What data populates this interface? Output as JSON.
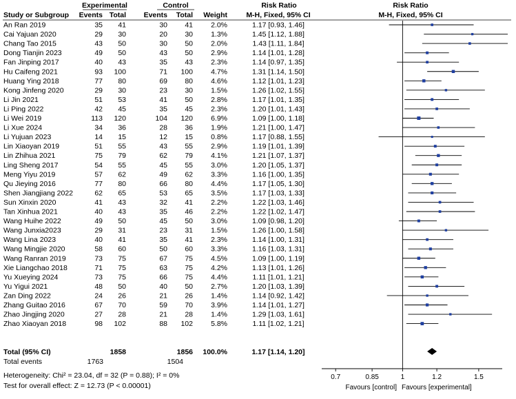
{
  "table": {
    "group_headers": {
      "experimental": "Experimental",
      "control": "Control",
      "effect_left": "Risk Ratio",
      "effect_right": "Risk Ratio"
    },
    "col_headers": {
      "study": "Study or Subgroup",
      "events_e": "Events",
      "total_e": "Total",
      "events_c": "Events",
      "total_c": "Total",
      "weight": "Weight",
      "method_left": "M-H, Fixed, 95% CI",
      "method_right": "M-H, Fixed, 95% CI"
    },
    "total_row": {
      "label": "Total (95% CI)",
      "total_e": "1858",
      "total_c": "1856",
      "weight": "100.0%",
      "ci": "1.17 [1.14, 1.20]"
    },
    "events_row": {
      "label": "Total events",
      "events_e": "1763",
      "events_c": "1504"
    },
    "heterogeneity": "Heterogeneity: Chi² = 23.04, df = 32 (P = 0.88); I² = 0%",
    "overall_effect": "Test for overall effect: Z = 12.73 (P < 0.00001)",
    "favours_left": "Favours [control]",
    "favours_right": "Favours [experimental]"
  },
  "chart_data": {
    "type": "forest",
    "x_scale": "log",
    "xlim": [
      0.65,
      1.7
    ],
    "x_ticks": [
      "0.7",
      "0.85",
      "1",
      "1.2",
      "1.5"
    ],
    "null_line": 1,
    "studies": [
      {
        "study": "An Ran 2019",
        "events_e": 35,
        "total_e": 41,
        "events_c": 30,
        "total_c": 41,
        "weight": "2.0%",
        "rr": 1.17,
        "lo": 0.93,
        "hi": 1.46,
        "ci": "1.17 [0.93, 1.46]"
      },
      {
        "study": "Cai Yajuan 2020",
        "events_e": 29,
        "total_e": 30,
        "events_c": 20,
        "total_c": 30,
        "weight": "1.3%",
        "rr": 1.45,
        "lo": 1.12,
        "hi": 1.88,
        "ci": "1.45 [1.12, 1.88]"
      },
      {
        "study": "Chang Tao 2015",
        "events_e": 43,
        "total_e": 50,
        "events_c": 30,
        "total_c": 50,
        "weight": "2.0%",
        "rr": 1.43,
        "lo": 1.11,
        "hi": 1.84,
        "ci": "1.43 [1.11, 1.84]"
      },
      {
        "study": "Dong Tianjin 2023",
        "events_e": 49,
        "total_e": 50,
        "events_c": 43,
        "total_c": 50,
        "weight": "2.9%",
        "rr": 1.14,
        "lo": 1.01,
        "hi": 1.28,
        "ci": "1.14 [1.01, 1.28]"
      },
      {
        "study": "Fan Jinping 2017",
        "events_e": 40,
        "total_e": 43,
        "events_c": 35,
        "total_c": 43,
        "weight": "2.3%",
        "rr": 1.14,
        "lo": 0.97,
        "hi": 1.35,
        "ci": "1.14 [0.97, 1.35]"
      },
      {
        "study": "Hu Caifeng 2021",
        "events_e": 93,
        "total_e": 100,
        "events_c": 71,
        "total_c": 100,
        "weight": "4.7%",
        "rr": 1.31,
        "lo": 1.14,
        "hi": 1.5,
        "ci": "1.31 [1.14, 1.50]"
      },
      {
        "study": "Huang Ying 2018",
        "events_e": 77,
        "total_e": 80,
        "events_c": 69,
        "total_c": 80,
        "weight": "4.6%",
        "rr": 1.12,
        "lo": 1.01,
        "hi": 1.23,
        "ci": "1.12 [1.01, 1.23]"
      },
      {
        "study": "Kong Jinfeng 2020",
        "events_e": 29,
        "total_e": 30,
        "events_c": 23,
        "total_c": 30,
        "weight": "1.5%",
        "rr": 1.26,
        "lo": 1.02,
        "hi": 1.55,
        "ci": "1.26 [1.02, 1.55]"
      },
      {
        "study": "Li Jin 2021",
        "events_e": 51,
        "total_e": 53,
        "events_c": 41,
        "total_c": 50,
        "weight": "2.8%",
        "rr": 1.17,
        "lo": 1.01,
        "hi": 1.35,
        "ci": "1.17 [1.01, 1.35]"
      },
      {
        "study": "Li Ping 2022",
        "events_e": 42,
        "total_e": 45,
        "events_c": 35,
        "total_c": 45,
        "weight": "2.3%",
        "rr": 1.2,
        "lo": 1.01,
        "hi": 1.43,
        "ci": "1.20 [1.01, 1.43]"
      },
      {
        "study": "Li Wei 2019",
        "events_e": 113,
        "total_e": 120,
        "events_c": 104,
        "total_c": 120,
        "weight": "6.9%",
        "rr": 1.09,
        "lo": 1.0,
        "hi": 1.18,
        "ci": "1.09 [1.00, 1.18]"
      },
      {
        "study": "Li Xue 2024",
        "events_e": 34,
        "total_e": 36,
        "events_c": 28,
        "total_c": 36,
        "weight": "1.9%",
        "rr": 1.21,
        "lo": 1.0,
        "hi": 1.47,
        "ci": "1.21 [1.00, 1.47]"
      },
      {
        "study": "Li Yujuan 2023",
        "events_e": 14,
        "total_e": 15,
        "events_c": 12,
        "total_c": 15,
        "weight": "0.8%",
        "rr": 1.17,
        "lo": 0.88,
        "hi": 1.55,
        "ci": "1.17 [0.88, 1.55]"
      },
      {
        "study": "Lin Xiaoyan 2019",
        "events_e": 51,
        "total_e": 55,
        "events_c": 43,
        "total_c": 55,
        "weight": "2.9%",
        "rr": 1.19,
        "lo": 1.01,
        "hi": 1.39,
        "ci": "1.19 [1.01, 1.39]"
      },
      {
        "study": "Lin Zhihua 2021",
        "events_e": 75,
        "total_e": 79,
        "events_c": 62,
        "total_c": 79,
        "weight": "4.1%",
        "rr": 1.21,
        "lo": 1.07,
        "hi": 1.37,
        "ci": "1.21 [1.07, 1.37]"
      },
      {
        "study": "Ling Sheng 2017",
        "events_e": 54,
        "total_e": 55,
        "events_c": 45,
        "total_c": 55,
        "weight": "3.0%",
        "rr": 1.2,
        "lo": 1.05,
        "hi": 1.37,
        "ci": "1.20 [1.05, 1.37]"
      },
      {
        "study": "Meng Yiyu 2019",
        "events_e": 57,
        "total_e": 62,
        "events_c": 49,
        "total_c": 62,
        "weight": "3.3%",
        "rr": 1.16,
        "lo": 1.0,
        "hi": 1.35,
        "ci": "1.16 [1.00, 1.35]"
      },
      {
        "study": "Qu Jieying 2016",
        "events_e": 77,
        "total_e": 80,
        "events_c": 66,
        "total_c": 80,
        "weight": "4.4%",
        "rr": 1.17,
        "lo": 1.05,
        "hi": 1.3,
        "ci": "1.17 [1.05, 1.30]"
      },
      {
        "study": "Shen Jiangjiang 2022",
        "events_e": 62,
        "total_e": 65,
        "events_c": 53,
        "total_c": 65,
        "weight": "3.5%",
        "rr": 1.17,
        "lo": 1.03,
        "hi": 1.33,
        "ci": "1.17 [1.03, 1.33]"
      },
      {
        "study": "Sun Xinxin 2020",
        "events_e": 41,
        "total_e": 43,
        "events_c": 32,
        "total_c": 41,
        "weight": "2.2%",
        "rr": 1.22,
        "lo": 1.03,
        "hi": 1.46,
        "ci": "1.22 [1.03, 1.46]"
      },
      {
        "study": "Tan Xinhua 2021",
        "events_e": 40,
        "total_e": 43,
        "events_c": 35,
        "total_c": 46,
        "weight": "2.2%",
        "rr": 1.22,
        "lo": 1.02,
        "hi": 1.47,
        "ci": "1.22 [1.02, 1.47]"
      },
      {
        "study": "Wang Huihe 2022",
        "events_e": 49,
        "total_e": 50,
        "events_c": 45,
        "total_c": 50,
        "weight": "3.0%",
        "rr": 1.09,
        "lo": 0.98,
        "hi": 1.2,
        "ci": "1.09 [0.98, 1.20]"
      },
      {
        "study": "Wang Junxia2023",
        "events_e": 29,
        "total_e": 31,
        "events_c": 23,
        "total_c": 31,
        "weight": "1.5%",
        "rr": 1.26,
        "lo": 1.0,
        "hi": 1.58,
        "ci": "1.26 [1.00, 1.58]"
      },
      {
        "study": "Wang Lina 2023",
        "events_e": 40,
        "total_e": 41,
        "events_c": 35,
        "total_c": 41,
        "weight": "2.3%",
        "rr": 1.14,
        "lo": 1.0,
        "hi": 1.31,
        "ci": "1.14 [1.00, 1.31]"
      },
      {
        "study": "Wang Mingjie 2020",
        "events_e": 58,
        "total_e": 60,
        "events_c": 50,
        "total_c": 60,
        "weight": "3.3%",
        "rr": 1.16,
        "lo": 1.03,
        "hi": 1.31,
        "ci": "1.16 [1.03, 1.31]"
      },
      {
        "study": "Wang Ranran 2019",
        "events_e": 73,
        "total_e": 75,
        "events_c": 67,
        "total_c": 75,
        "weight": "4.5%",
        "rr": 1.09,
        "lo": 1.0,
        "hi": 1.19,
        "ci": "1.09 [1.00, 1.19]"
      },
      {
        "study": "Xie Liangchao 2018",
        "events_e": 71,
        "total_e": 75,
        "events_c": 63,
        "total_c": 75,
        "weight": "4.2%",
        "rr": 1.13,
        "lo": 1.01,
        "hi": 1.26,
        "ci": "1.13 [1.01, 1.26]"
      },
      {
        "study": "Yu Xueying 2024",
        "events_e": 73,
        "total_e": 75,
        "events_c": 66,
        "total_c": 75,
        "weight": "4.4%",
        "rr": 1.11,
        "lo": 1.01,
        "hi": 1.21,
        "ci": "1.11 [1.01, 1.21]"
      },
      {
        "study": "Yu Yigui 2021",
        "events_e": 48,
        "total_e": 50,
        "events_c": 40,
        "total_c": 50,
        "weight": "2.7%",
        "rr": 1.2,
        "lo": 1.03,
        "hi": 1.39,
        "ci": "1.20 [1.03, 1.39]"
      },
      {
        "study": "Zan Ding 2022",
        "events_e": 24,
        "total_e": 26,
        "events_c": 21,
        "total_c": 26,
        "weight": "1.4%",
        "rr": 1.14,
        "lo": 0.92,
        "hi": 1.42,
        "ci": "1.14 [0.92, 1.42]"
      },
      {
        "study": "Zhang Guitao 2016",
        "events_e": 67,
        "total_e": 70,
        "events_c": 59,
        "total_c": 70,
        "weight": "3.9%",
        "rr": 1.14,
        "lo": 1.01,
        "hi": 1.27,
        "ci": "1.14 [1.01, 1.27]"
      },
      {
        "study": "Zhao Jingjing 2020",
        "events_e": 27,
        "total_e": 28,
        "events_c": 21,
        "total_c": 28,
        "weight": "1.4%",
        "rr": 1.29,
        "lo": 1.03,
        "hi": 1.61,
        "ci": "1.29 [1.03, 1.61]"
      },
      {
        "study": "Zhao Xiaoyan 2018",
        "events_e": 98,
        "total_e": 102,
        "events_c": 88,
        "total_c": 102,
        "weight": "5.8%",
        "rr": 1.11,
        "lo": 1.02,
        "hi": 1.21,
        "ci": "1.11 [1.02, 1.21]"
      }
    ],
    "pooled": {
      "rr": 1.17,
      "lo": 1.14,
      "hi": 1.2
    },
    "colors": {
      "marker": "#1f3fa0",
      "ci_line": "#000000",
      "text": "#000000",
      "diamond": "#000000"
    }
  }
}
